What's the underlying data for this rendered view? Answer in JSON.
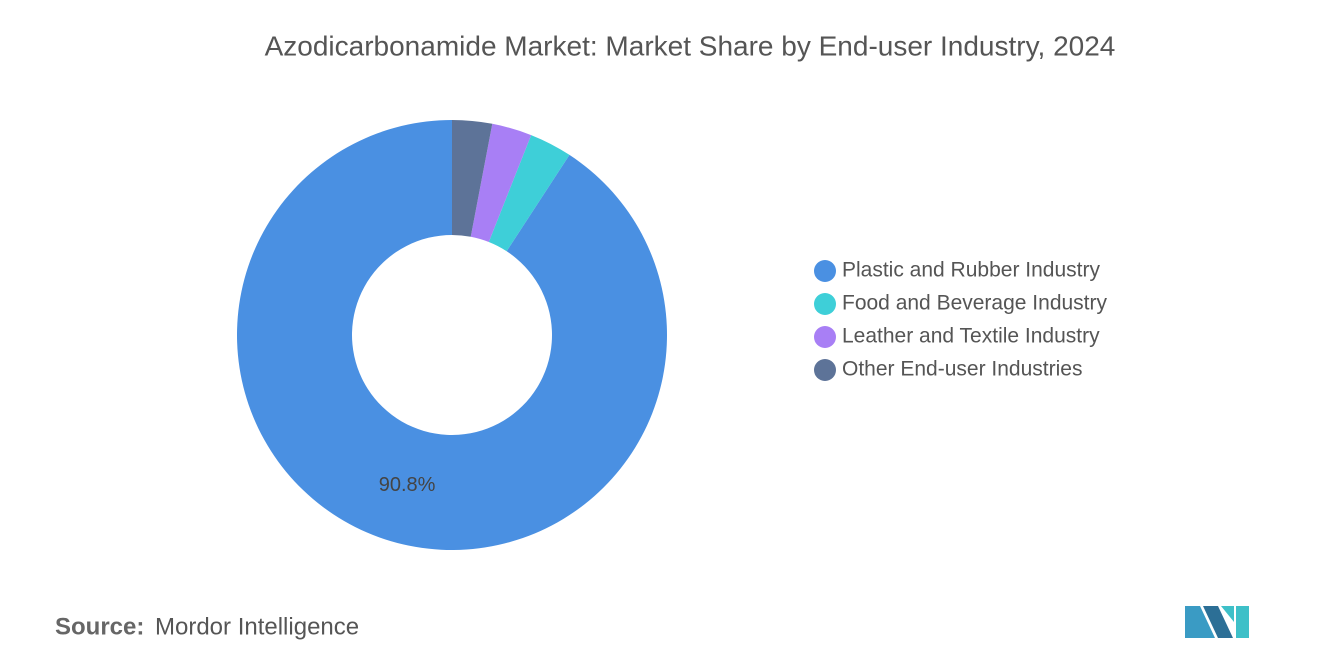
{
  "chart_data": {
    "type": "donut",
    "title": "Azodicarbonamide Market: Market Share by End-user Industry, 2024",
    "categories": [
      "Plastic and Rubber Industry",
      "Food and Beverage Industry",
      "Leather and Textile Industry",
      "Other End-user Industries"
    ],
    "values": [
      90.8,
      3.2,
      3.0,
      3.0
    ],
    "value_labels": [
      "90.8%",
      null,
      null,
      null
    ],
    "colors": [
      "#4a90e2",
      "#3ecfd8",
      "#a87ff5",
      "#5d7398"
    ],
    "legend": "right",
    "source_label": "Source:",
    "source": "Mordor Intelligence"
  }
}
